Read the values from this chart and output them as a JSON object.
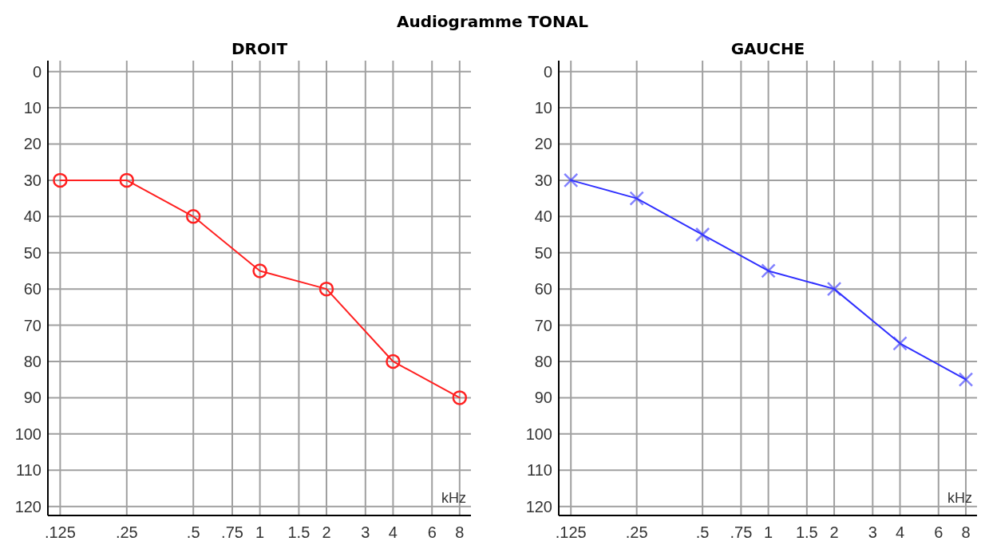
{
  "chart_data": [
    {
      "type": "line",
      "title": "Audiogramme TONAL",
      "subtitle": "DROIT",
      "xlabel": "kHz",
      "log": "x",
      "x": [
        0.125,
        0.25,
        0.5,
        1,
        2,
        4,
        8
      ],
      "xlim": [
        0.11,
        9
      ],
      "xticks": [
        {
          "value": 0.125,
          "label": ".125"
        },
        {
          "value": 0.25,
          "label": ".25"
        },
        {
          "value": 0.5,
          "label": ".5"
        },
        {
          "value": 0.75,
          "label": ".75"
        },
        1,
        1.5,
        2,
        3,
        4,
        6,
        8
      ],
      "ylim": [
        122.5,
        -3
      ],
      "yticks": [
        0,
        10,
        20,
        30,
        40,
        50,
        60,
        70,
        80,
        90,
        100,
        110,
        120
      ],
      "grid": true,
      "marker": "circle",
      "line_style": "solid",
      "series": [
        {
          "color": "#ff2020",
          "values": [
            30,
            30,
            40,
            55,
            60,
            80,
            90
          ]
        }
      ]
    },
    {
      "type": "line",
      "subtitle": "GAUCHE",
      "xlabel": "kHz",
      "log": "x",
      "x": [
        0.125,
        0.25,
        0.5,
        1,
        2,
        4,
        8
      ],
      "xlim": [
        0.11,
        9
      ],
      "xticks": [
        {
          "value": 0.125,
          "label": ".125"
        },
        {
          "value": 0.25,
          "label": ".25"
        },
        {
          "value": 0.5,
          "label": ".5"
        },
        {
          "value": 0.75,
          "label": ".75"
        },
        1,
        1.5,
        2,
        3,
        4,
        6,
        8
      ],
      "ylim": [
        122.5,
        -3
      ],
      "yticks": [
        0,
        10,
        20,
        30,
        40,
        50,
        60,
        70,
        80,
        90,
        100,
        110,
        120
      ],
      "grid": true,
      "marker": "cross",
      "line_style": "solid",
      "series": [
        {
          "color": "#3030ff",
          "values": [
            30,
            35,
            45,
            55,
            60,
            75,
            85
          ]
        }
      ]
    }
  ]
}
